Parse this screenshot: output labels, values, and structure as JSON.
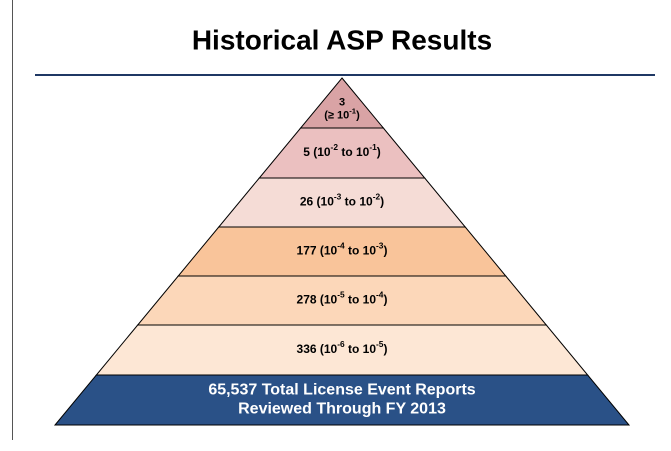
{
  "title": "Historical ASP Results",
  "tiers": [
    {
      "lines": [
        [
          {
            "text": "3"
          }
        ],
        [
          {
            "text": "(≥ 10"
          },
          {
            "sup": "-1"
          },
          {
            "text": ")"
          }
        ]
      ]
    },
    {
      "lines": [
        [
          {
            "text": "5 (10"
          },
          {
            "sup": "-2"
          },
          {
            "text": " to 10"
          },
          {
            "sup": "-1"
          },
          {
            "text": ")"
          }
        ]
      ]
    },
    {
      "lines": [
        [
          {
            "text": "26 (10"
          },
          {
            "sup": "-3"
          },
          {
            "text": " to 10"
          },
          {
            "sup": "-2"
          },
          {
            "text": ")"
          }
        ]
      ]
    },
    {
      "lines": [
        [
          {
            "text": "177 (10"
          },
          {
            "sup": "-4"
          },
          {
            "text": " to 10"
          },
          {
            "sup": "-3"
          },
          {
            "text": ")"
          }
        ]
      ]
    },
    {
      "lines": [
        [
          {
            "text": "278 (10"
          },
          {
            "sup": "-5"
          },
          {
            "text": " to 10"
          },
          {
            "sup": "-4"
          },
          {
            "text": ")"
          }
        ]
      ]
    },
    {
      "lines": [
        [
          {
            "text": "336 (10"
          },
          {
            "sup": "-6"
          },
          {
            "text": " to 10"
          },
          {
            "sup": "-5"
          },
          {
            "text": ")"
          }
        ]
      ]
    }
  ],
  "base": {
    "lines": [
      "65,537 Total License Event Reports",
      "Reviewed Through FY 2013"
    ]
  }
}
